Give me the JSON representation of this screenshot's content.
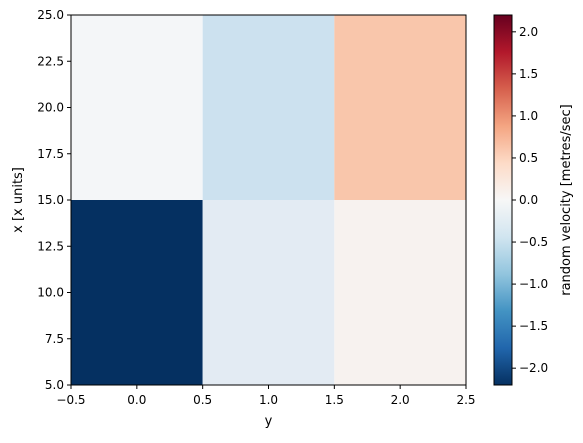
{
  "chart_data": {
    "type": "heatmap",
    "title": "",
    "xlabel": "y",
    "ylabel": "x [x units]",
    "xlim": [
      -0.5,
      2.5
    ],
    "ylim": [
      5.0,
      25.0
    ],
    "x_ticks": [
      "−0.5",
      "0.0",
      "0.5",
      "1.0",
      "1.5",
      "2.0",
      "2.5"
    ],
    "y_ticks": [
      "5.0",
      "7.5",
      "10.0",
      "12.5",
      "15.0",
      "17.5",
      "20.0",
      "22.5",
      "25.0"
    ],
    "y_edges": [
      5.0,
      15.0,
      25.0
    ],
    "x_centers": [
      0,
      1,
      2
    ],
    "cells": [
      {
        "y": 0,
        "x_bin": [
          5.0,
          15.0
        ],
        "value": -2.2,
        "color": "#053061"
      },
      {
        "y": 1,
        "x_bin": [
          5.0,
          15.0
        ],
        "value": -0.15,
        "color": "#e3ebf3"
      },
      {
        "y": 2,
        "x_bin": [
          5.0,
          15.0
        ],
        "value": 0.07,
        "color": "#f7f2ef"
      },
      {
        "y": 0,
        "x_bin": [
          15.0,
          25.0
        ],
        "value": -0.05,
        "color": "#f4f6f8"
      },
      {
        "y": 1,
        "x_bin": [
          15.0,
          25.0
        ],
        "value": -0.45,
        "color": "#cce1ef"
      },
      {
        "y": 2,
        "x_bin": [
          15.0,
          25.0
        ],
        "value": 0.65,
        "color": "#f9c6ab"
      }
    ],
    "colorbar": {
      "label": "random velocity [metres/sec]",
      "colormap": "RdBu_r",
      "vmin": -2.2,
      "vmax": 2.2,
      "ticks": [
        "−2.0",
        "−1.5",
        "−1.0",
        "−0.5",
        "0.0",
        "0.5",
        "1.0",
        "1.5",
        "2.0"
      ]
    }
  }
}
